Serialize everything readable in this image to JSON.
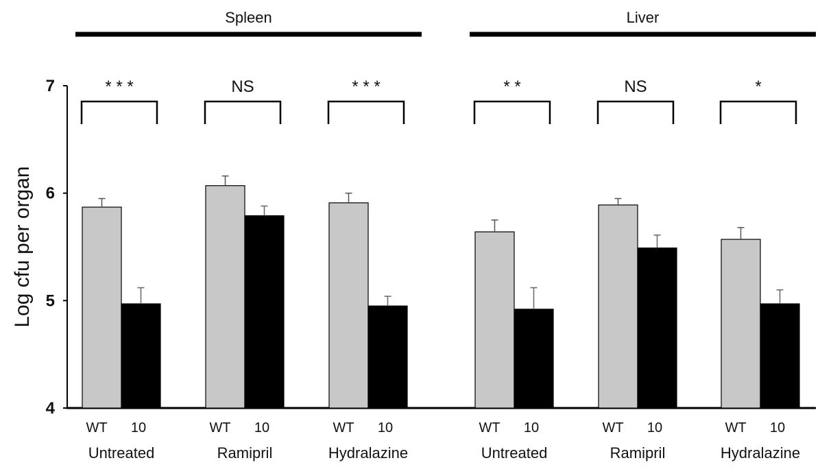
{
  "chart_data": {
    "type": "bar",
    "ylabel": "Log cfu per organ",
    "ylim": [
      4,
      7
    ],
    "yticks": [
      "4",
      "5",
      "6",
      "7"
    ],
    "grid": false,
    "organs": [
      "Spleen",
      "Liver"
    ],
    "groups": [
      {
        "organ": "Spleen",
        "treatment": "Untreated",
        "significance": "* * *",
        "bars": [
          {
            "label": "WT",
            "value": 5.87,
            "error": 0.08
          },
          {
            "label": "10",
            "value": 4.97,
            "error": 0.15
          }
        ]
      },
      {
        "organ": "Spleen",
        "treatment": "Ramipril",
        "significance": "NS",
        "bars": [
          {
            "label": "WT",
            "value": 6.07,
            "error": 0.09
          },
          {
            "label": "10",
            "value": 5.79,
            "error": 0.09
          }
        ]
      },
      {
        "organ": "Spleen",
        "treatment": "Hydralazine",
        "significance": "* * *",
        "bars": [
          {
            "label": "WT",
            "value": 5.91,
            "error": 0.09
          },
          {
            "label": "10",
            "value": 4.95,
            "error": 0.09
          }
        ]
      },
      {
        "organ": "Liver",
        "treatment": "Untreated",
        "significance": "* *",
        "bars": [
          {
            "label": "WT",
            "value": 5.64,
            "error": 0.11
          },
          {
            "label": "10",
            "value": 4.92,
            "error": 0.2
          }
        ]
      },
      {
        "organ": "Liver",
        "treatment": "Ramipril",
        "significance": "NS",
        "bars": [
          {
            "label": "WT",
            "value": 5.89,
            "error": 0.06
          },
          {
            "label": "10",
            "value": 5.49,
            "error": 0.12
          }
        ]
      },
      {
        "organ": "Liver",
        "treatment": "Hydralazine",
        "significance": "*",
        "bars": [
          {
            "label": "WT",
            "value": 5.57,
            "error": 0.11
          },
          {
            "label": "10",
            "value": 4.97,
            "error": 0.13
          }
        ]
      }
    ],
    "colors": {
      "WT": "#c8c8c8",
      "10": "#000000",
      "axis": "#000000"
    }
  }
}
